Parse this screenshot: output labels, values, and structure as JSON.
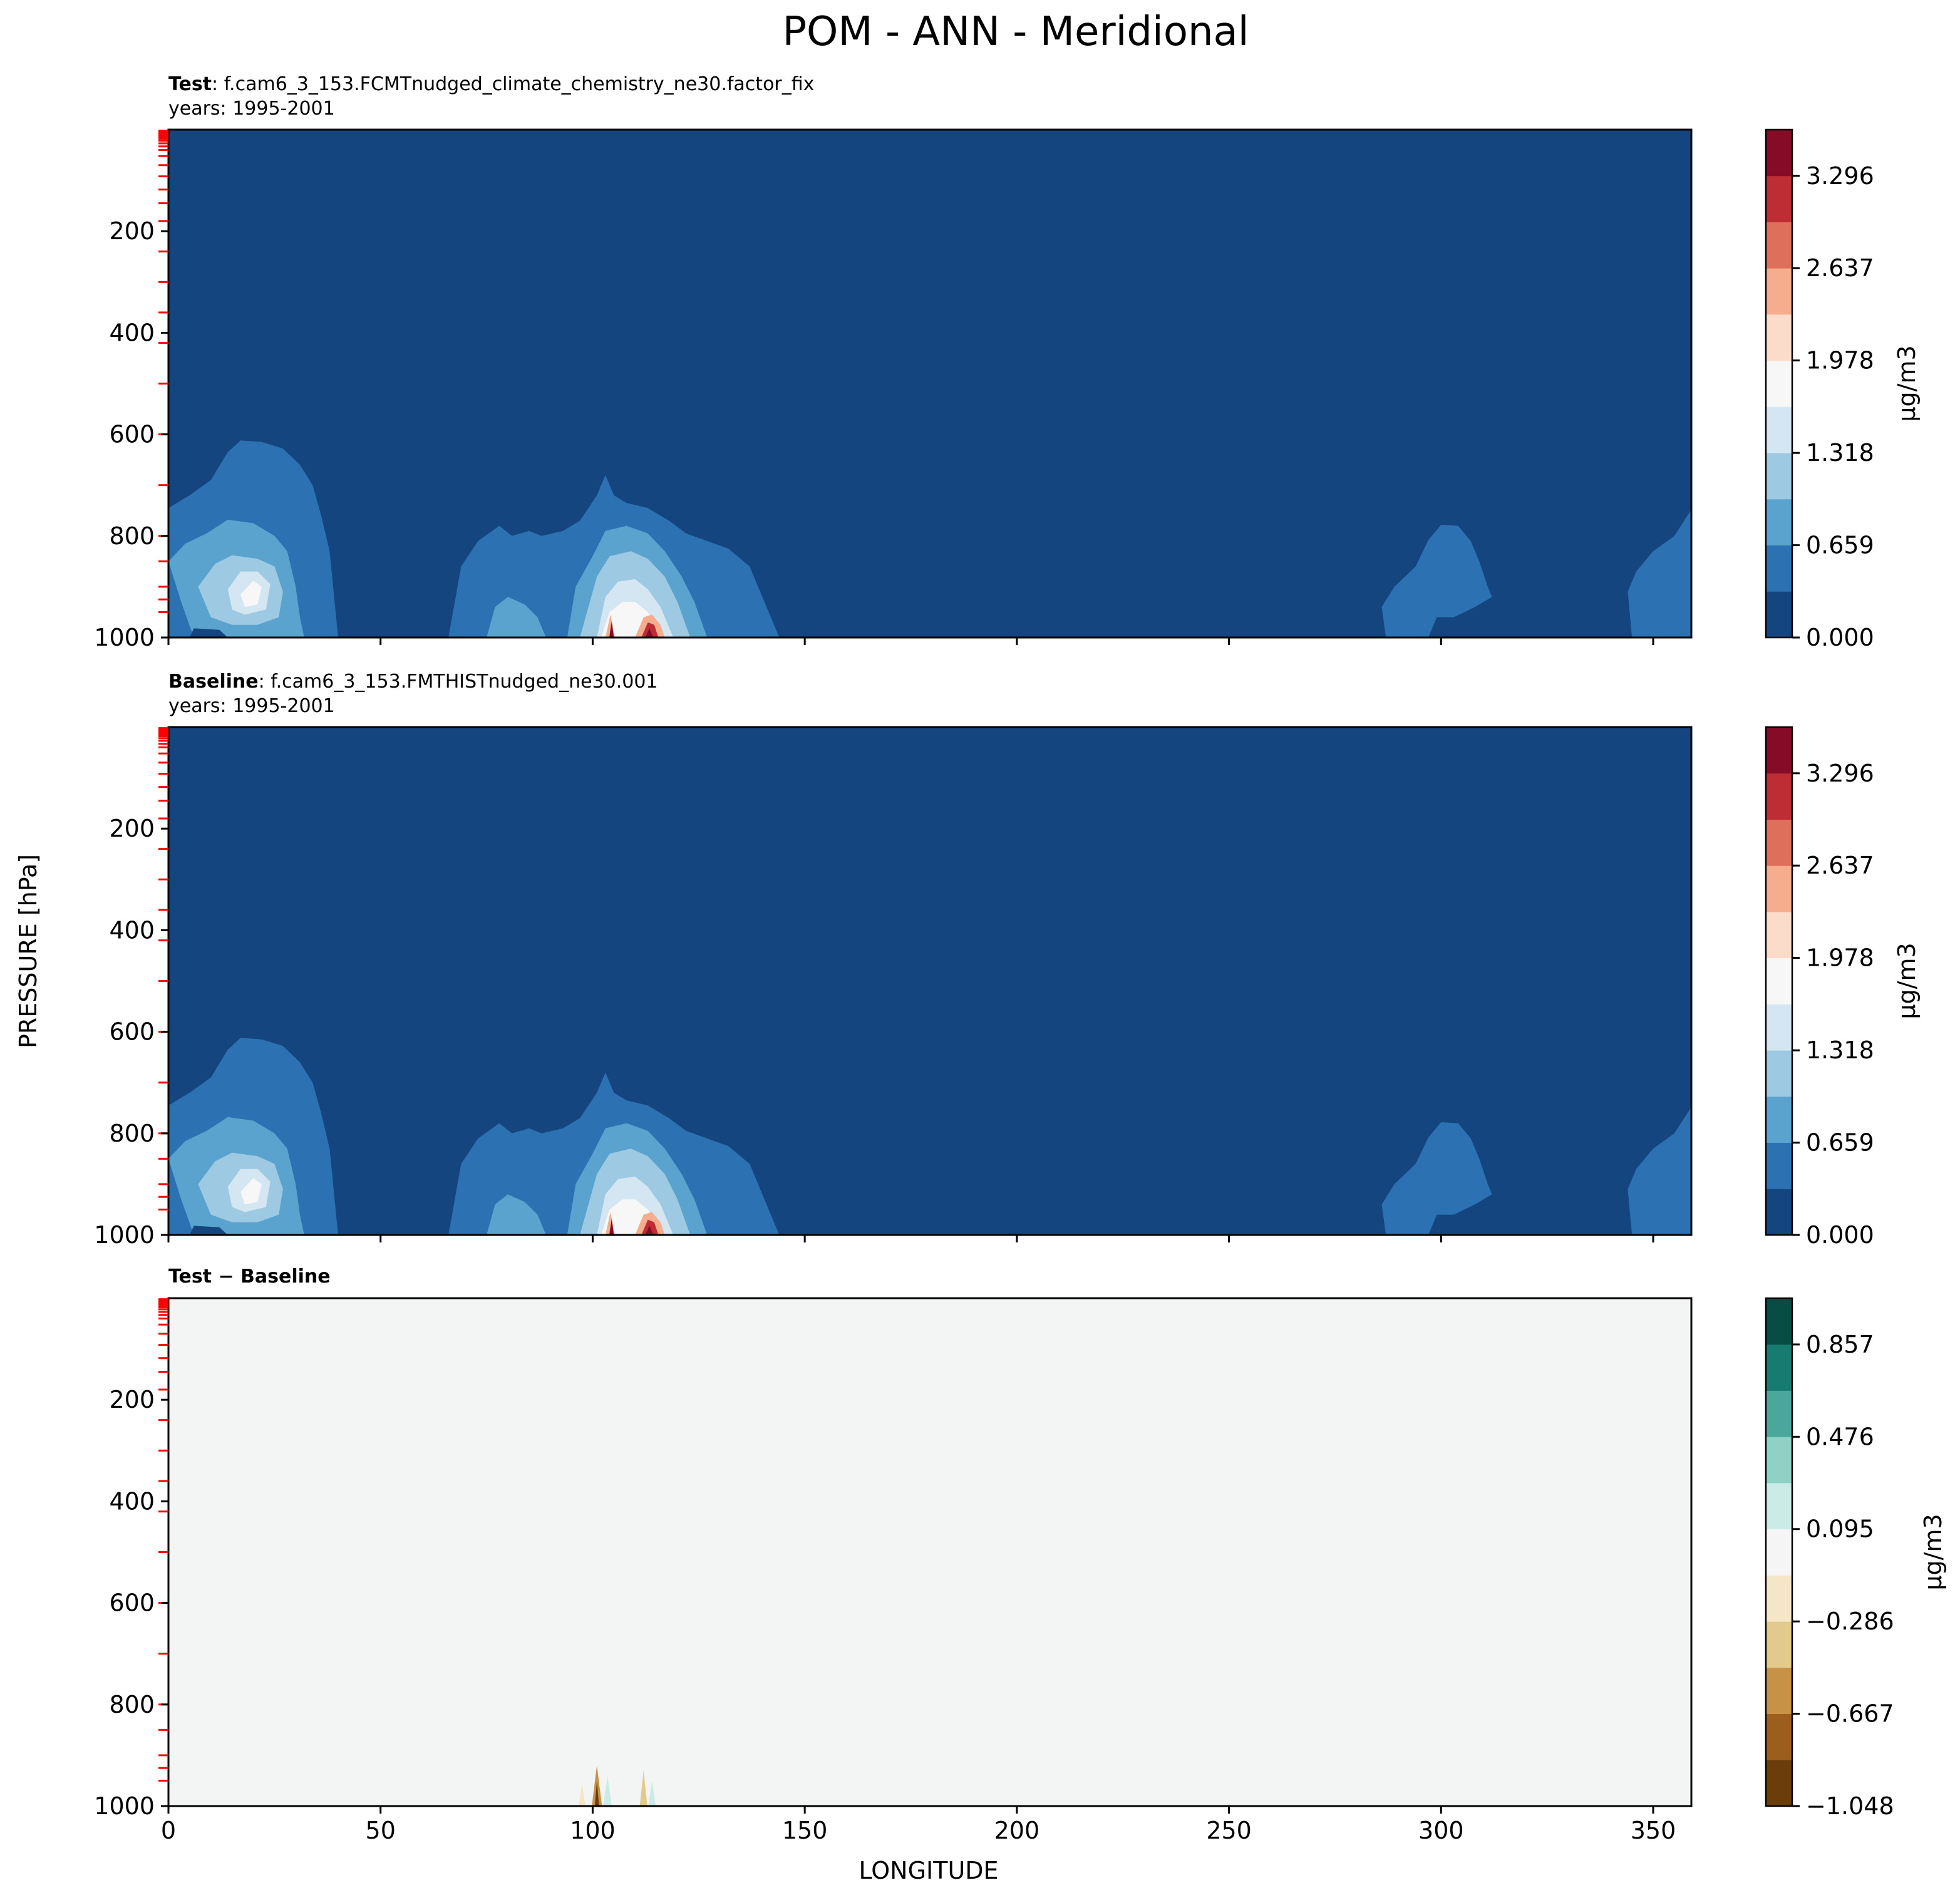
{
  "title": "POM - ANN - Meridional",
  "ylabel": "PRESSURE [hPa]",
  "xlabel": "LONGITUDE",
  "colorbar_label": "μg/m3",
  "panels": [
    {
      "label_bold": "Test",
      "label_rest": ": f.cam6_3_153.FCMTnudged_climate_chemistry_ne30.factor_fix",
      "years": "years: 1995-2001"
    },
    {
      "label_bold": "Baseline",
      "label_rest": ": f.cam6_3_153.FMTHISTnudged_ne30.001",
      "years": "years: 1995-2001"
    },
    {
      "label_bold": "Test − Baseline",
      "label_rest": "",
      "years": ""
    }
  ],
  "colors": {
    "frame": "#000000",
    "level_marks": "#ff0000",
    "background_field": "#14457e",
    "diff_field": "#f3f5f4"
  },
  "chart_data": [
    {
      "type": "heatmap",
      "panel": "Test",
      "x_ticks": [
        0,
        50,
        100,
        150,
        200,
        250,
        300,
        350
      ],
      "xlim": [
        0,
        359
      ],
      "y_ticks": [
        200,
        400,
        600,
        800,
        1000
      ],
      "ylim": [
        1000,
        0
      ],
      "colorbar_ticks": [
        "0.000",
        "0.659",
        "1.318",
        "1.978",
        "2.637",
        "3.296"
      ],
      "colorbar_range": [
        0,
        3.626
      ],
      "colormap": [
        "#14457e",
        "#2c71b1",
        "#5ba3cf",
        "#9ec9e2",
        "#d4e6f1",
        "#f7f7f7",
        "#fbdbc9",
        "#f4ae8e",
        "#de6f5b",
        "#bd2d33",
        "#860b26"
      ],
      "features": [
        {
          "lon_range": [
            0,
            32
          ],
          "top_hPa": 610,
          "peak": 1.5
        },
        {
          "lon_range": [
            66,
            144
          ],
          "top_hPa": 680,
          "peak": 3.6
        },
        {
          "lon_range": [
            287,
            312
          ],
          "top_hPa": 775,
          "peak": 0.4
        },
        {
          "lon_range": [
            344,
            359
          ],
          "top_hPa": 745,
          "peak": 0.4
        }
      ]
    },
    {
      "type": "heatmap",
      "panel": "Baseline",
      "x_ticks": [
        0,
        50,
        100,
        150,
        200,
        250,
        300,
        350
      ],
      "xlim": [
        0,
        359
      ],
      "y_ticks": [
        200,
        400,
        600,
        800,
        1000
      ],
      "ylim": [
        1000,
        0
      ],
      "colorbar_ticks": [
        "0.000",
        "0.659",
        "1.318",
        "1.978",
        "2.637",
        "3.296"
      ],
      "colorbar_range": [
        0,
        3.626
      ],
      "colormap": [
        "#14457e",
        "#2c71b1",
        "#5ba3cf",
        "#9ec9e2",
        "#d4e6f1",
        "#f7f7f7",
        "#fbdbc9",
        "#f4ae8e",
        "#de6f5b",
        "#bd2d33",
        "#860b26"
      ],
      "features": [
        {
          "lon_range": [
            0,
            32
          ],
          "top_hPa": 610,
          "peak": 1.5
        },
        {
          "lon_range": [
            66,
            144
          ],
          "top_hPa": 680,
          "peak": 3.6
        },
        {
          "lon_range": [
            287,
            312
          ],
          "top_hPa": 775,
          "peak": 0.4
        },
        {
          "lon_range": [
            344,
            359
          ],
          "top_hPa": 745,
          "peak": 0.4
        }
      ]
    },
    {
      "type": "heatmap",
      "panel": "Test − Baseline",
      "x_ticks": [
        0,
        50,
        100,
        150,
        200,
        250,
        300,
        350
      ],
      "xlim": [
        0,
        359
      ],
      "y_ticks": [
        200,
        400,
        600,
        800,
        1000
      ],
      "ylim": [
        1000,
        0
      ],
      "colorbar_ticks": [
        "−1.048",
        "−0.667",
        "−0.286",
        "0.095",
        "0.476",
        "0.857"
      ],
      "colorbar_range": [
        -1.048,
        1.048
      ],
      "colormap": [
        "#6b3d0a",
        "#9b5e1c",
        "#c79245",
        "#e2c98c",
        "#f4e6c6",
        "#f5f5f5",
        "#cbece6",
        "#8fd1c4",
        "#4ba69b",
        "#187b72",
        "#074d43"
      ],
      "features": [
        {
          "lon": 101,
          "min": -1.0
        },
        {
          "lon": 103,
          "max": 0.4
        },
        {
          "lon": 112,
          "min": -0.5
        },
        {
          "lon": 114,
          "max": 0.3
        }
      ]
    }
  ]
}
